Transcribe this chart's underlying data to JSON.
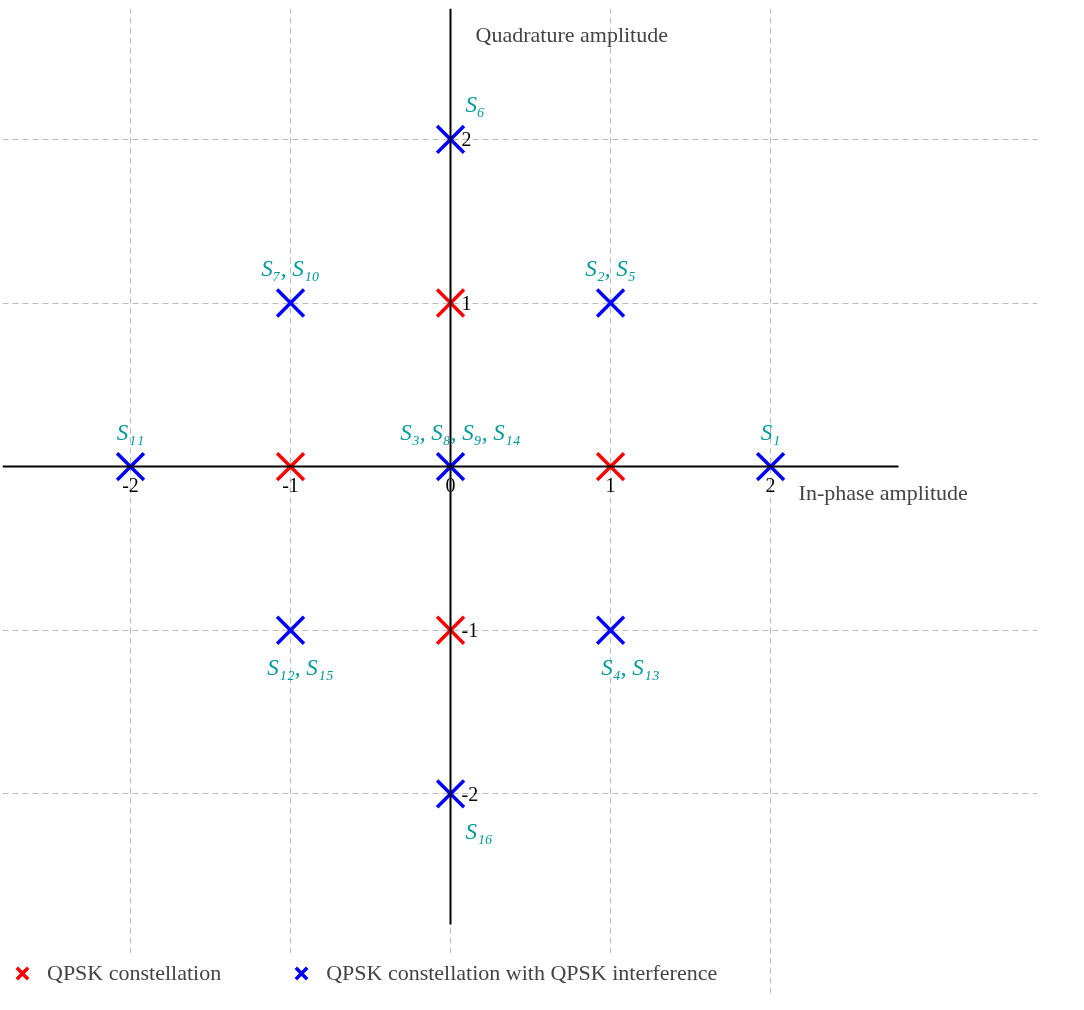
{
  "chart_data": {
    "type": "scatter",
    "xlabel": "In-phase amplitude",
    "ylabel": "Quadrature amplitude",
    "xlim": [
      -2.8,
      2.8
    ],
    "ylim": [
      -2.8,
      2.8
    ],
    "xticks": [
      -2,
      -1,
      0,
      1,
      2
    ],
    "yticks": [
      -2,
      -1,
      1,
      2
    ],
    "grid": true,
    "legend": "bottom",
    "marker": "cross",
    "series": [
      {
        "name": "QPSK constellation",
        "color": "#ff0000",
        "x": [
          1,
          0,
          -1,
          0
        ],
        "values": [
          0,
          1,
          0,
          -1
        ]
      },
      {
        "name": "QPSK constellation with QPSK interference",
        "color": "#0000ff",
        "x": [
          2,
          1,
          0,
          1,
          0,
          -1,
          -2,
          -1,
          0
        ],
        "values": [
          0,
          1,
          0,
          -1,
          2,
          1,
          0,
          -1,
          -2
        ]
      }
    ],
    "annotations": [
      {
        "text": "S₁",
        "x": 2,
        "y": 0
      },
      {
        "text": "S₂, S₅",
        "x": 1,
        "y": 1
      },
      {
        "text": "S₃, S₈, S₉, S₁₄",
        "x": 0,
        "y": 0
      },
      {
        "text": "S₄, S₁₃",
        "x": 1,
        "y": -1
      },
      {
        "text": "S₆",
        "x": 0,
        "y": 2
      },
      {
        "text": "S₇, S₁₀",
        "x": -1,
        "y": 1
      },
      {
        "text": "S₁₁",
        "x": -2,
        "y": 0
      },
      {
        "text": "S₁₂, S₁₅",
        "x": -1,
        "y": -1
      },
      {
        "text": "S₁₆",
        "x": 0,
        "y": -2
      }
    ]
  }
}
